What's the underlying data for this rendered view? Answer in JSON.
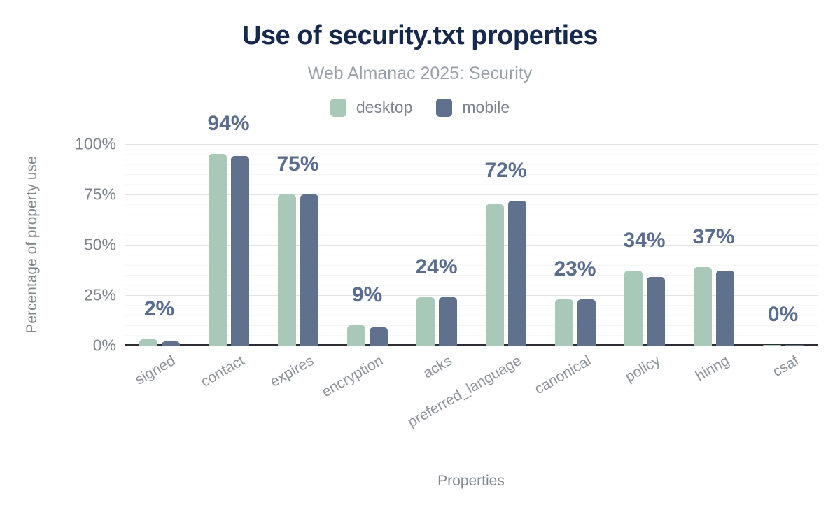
{
  "header": {
    "title": "Use of security.txt properties",
    "subtitle": "Web Almanac 2025: Security"
  },
  "colors": {
    "title": "#16284c",
    "desktop_series": "#a9c9b8",
    "mobile_series": "#5f718d",
    "value_label": "#5b6d8e",
    "axis_line": "#2e2d33",
    "grid_major": "#e3e3e3",
    "grid_minor": "#f4f4f1"
  },
  "chart_data": {
    "type": "bar",
    "title": "Use of security.txt properties",
    "subtitle": "Web Almanac 2025: Security",
    "xlabel": "Properties",
    "ylabel": "Percentage of property use",
    "ylim": [
      0,
      100
    ],
    "y_ticks": [
      "0%",
      "25%",
      "50%",
      "75%",
      "100%"
    ],
    "grid": "horizontal: major every 25%, faint minor every 5%",
    "legend_position": "top",
    "categories": [
      "signed",
      "contact",
      "expires",
      "encryption",
      "acks",
      "preferred_language",
      "canonical",
      "policy",
      "hiring",
      "csaf"
    ],
    "series": [
      {
        "name": "desktop",
        "color": "#a9c9b8",
        "values": [
          3,
          95,
          75,
          10,
          24,
          70,
          23,
          37,
          39,
          0.5
        ]
      },
      {
        "name": "mobile",
        "color": "#5f718d",
        "values": [
          2,
          94,
          75,
          9,
          24,
          72,
          23,
          34,
          37,
          0.5
        ]
      }
    ],
    "bar_labels": [
      "2%",
      "94%",
      "75%",
      "9%",
      "24%",
      "72%",
      "23%",
      "34%",
      "37%",
      "0%"
    ]
  }
}
